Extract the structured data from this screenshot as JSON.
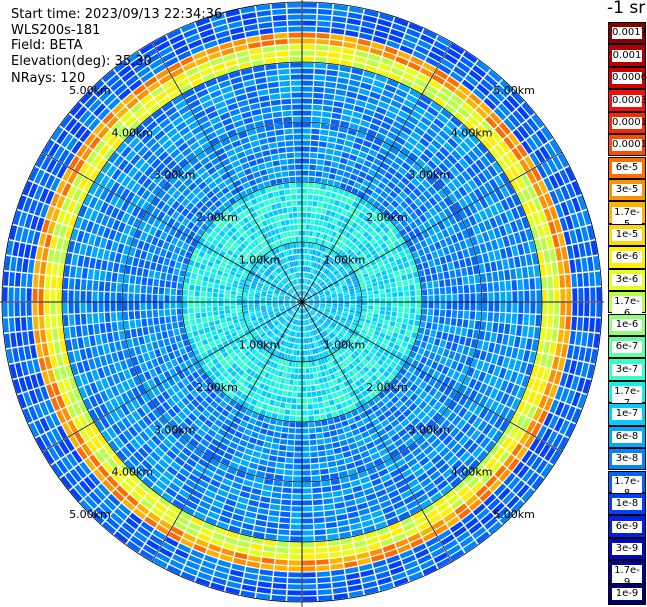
{
  "header": {
    "start_time": "Start time: 2023/09/13 22:34:36",
    "instrument": "WLS200s-181",
    "field": "Field: BETA",
    "elevation": "Elevation(deg): 35.30",
    "nrays": "NRays: 120"
  },
  "chart_data": {
    "type": "heatmap",
    "projection": "polar-ppi",
    "field": "BETA",
    "rays": 120,
    "elevation_deg": 35.3,
    "range_rings_km": [
      1.0,
      2.0,
      3.0,
      4.0,
      5.0
    ],
    "ring_labels": [
      "1.00km",
      "2.00km",
      "3.00km",
      "4.00km",
      "5.00km"
    ],
    "max_range_km": 5.0,
    "spokes_deg": [
      0,
      30,
      60,
      90,
      120,
      150,
      180,
      210,
      240,
      270,
      300,
      330
    ],
    "grid": true,
    "colorbar": {
      "unit": "-1 sr",
      "labels": [
        "0.0017",
        "0.001",
        "0.0006",
        "0.0003",
        "0.00017",
        "0.0001",
        "6e-5",
        "3e-5",
        "1.7e-5",
        "1e-5",
        "6e-6",
        "3e-6",
        "1.7e-6",
        "1e-6",
        "6e-7",
        "3e-7",
        "1.7e-7",
        "1e-7",
        "6e-8",
        "3e-8",
        "1.7e-8",
        "1e-8",
        "6e-9",
        "3e-9",
        "1.7e-9",
        "1e-9"
      ],
      "colors": [
        "#8b0000",
        "#b00000",
        "#d40000",
        "#f01010",
        "#ff2400",
        "#ff4a00",
        "#ff6d00",
        "#ff9000",
        "#ffb300",
        "#ffd600",
        "#ffef00",
        "#e6ff1a",
        "#b8ff47",
        "#8cff73",
        "#5effa1",
        "#33ffcc",
        "#12f0ee",
        "#00ccff",
        "#00a8ff",
        "#0085ff",
        "#0062ff",
        "#0040ff",
        "#0020e8",
        "#0008c4",
        "#000098",
        "#00006e"
      ]
    },
    "bands": [
      {
        "range_km": [
          0.0,
          1.0
        ],
        "level": "1.7e-7 to 1e-6",
        "color_index": 17
      },
      {
        "range_km": [
          1.0,
          2.0
        ],
        "level": "1.7e-7 to 6e-7",
        "color_index": 16
      },
      {
        "range_km": [
          2.0,
          4.0
        ],
        "level": "3e-8 to 1.7e-7",
        "color_index": 19
      },
      {
        "range_km": [
          4.0,
          4.3
        ],
        "level": "1e-6 to 1e-5",
        "color_index": 11
      },
      {
        "range_km": [
          4.3,
          4.5
        ],
        "level": "3e-5 to 6e-5",
        "color_index": 7
      },
      {
        "range_km": [
          4.5,
          5.0
        ],
        "level": "1.7e-8 to 1e-7",
        "color_index": 20
      }
    ]
  }
}
